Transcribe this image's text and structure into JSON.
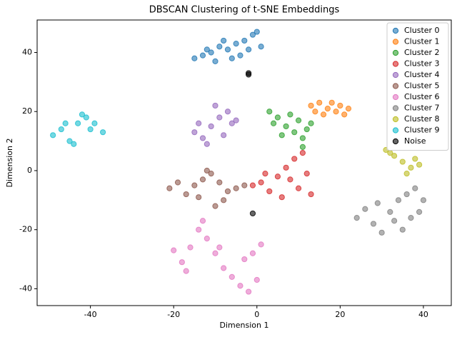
{
  "chart_data": {
    "type": "scatter",
    "title": "DBSCAN Clustering of t-SNE Embeddings",
    "x_label": "Dimension 1",
    "y_label": "Dimension 2",
    "xlim": [
      -52.8,
      46.7
    ],
    "ylim": [
      -45.7,
      51
    ],
    "xticks": [
      -40,
      -20,
      0,
      20,
      40
    ],
    "yticks": [
      -40,
      -20,
      0,
      20,
      40
    ],
    "legend": "upper right",
    "series": [
      {
        "name": "Cluster 0",
        "color": "#1f77b4",
        "x": [
          -15,
          -13,
          -11,
          -9,
          -7,
          -5,
          -3,
          -1,
          0,
          -2,
          -6,
          -10,
          -8,
          1,
          -4,
          -12
        ],
        "y": [
          38,
          39,
          40,
          42,
          41,
          43,
          44,
          46,
          47,
          41,
          38,
          37,
          44,
          42,
          39,
          41
        ]
      },
      {
        "name": "Cluster 1",
        "color": "#ff7f0e",
        "x": [
          13,
          15,
          17,
          19,
          21,
          16,
          18,
          20,
          14,
          22
        ],
        "y": [
          22,
          23,
          21,
          20,
          19,
          19,
          23,
          22,
          20,
          21
        ]
      },
      {
        "name": "Cluster 2",
        "color": "#2ca02c",
        "x": [
          3,
          5,
          7,
          9,
          11,
          12,
          6,
          8,
          10,
          13,
          4,
          11
        ],
        "y": [
          20,
          18,
          15,
          13,
          11,
          14,
          12,
          19,
          17,
          16,
          16,
          8
        ]
      },
      {
        "name": "Cluster 3",
        "color": "#d62728",
        "x": [
          1,
          3,
          5,
          7,
          9,
          11,
          12,
          10,
          6,
          8,
          2,
          13,
          -1
        ],
        "y": [
          -4,
          -7,
          -2,
          1,
          4,
          6,
          -1,
          -6,
          -9,
          -3,
          -1,
          -8,
          -5
        ]
      },
      {
        "name": "Cluster 4",
        "color": "#9467bd",
        "x": [
          -15,
          -13,
          -11,
          -9,
          -7,
          -6,
          -10,
          -12,
          -8,
          -14,
          -5
        ],
        "y": [
          13,
          11,
          15,
          18,
          20,
          16,
          22,
          9,
          12,
          16,
          17
        ]
      },
      {
        "name": "Cluster 5",
        "color": "#8c564b",
        "x": [
          -21,
          -19,
          -17,
          -15,
          -13,
          -11,
          -9,
          -7,
          -5,
          -3,
          -12,
          -14,
          -8,
          -10
        ],
        "y": [
          -6,
          -4,
          -8,
          -5,
          -3,
          -1,
          -4,
          -7,
          -6,
          -5,
          0,
          -9,
          -10,
          -12
        ]
      },
      {
        "name": "Cluster 6",
        "color": "#e377c2",
        "x": [
          -20,
          -18,
          -16,
          -14,
          -12,
          -10,
          -8,
          -6,
          -4,
          -2,
          0,
          -1,
          1,
          -3,
          -13,
          -17,
          -9
        ],
        "y": [
          -27,
          -31,
          -26,
          -20,
          -23,
          -28,
          -33,
          -36,
          -39,
          -41,
          -37,
          -28,
          -25,
          -30,
          -17,
          -34,
          -26
        ]
      },
      {
        "name": "Cluster 7",
        "color": "#7f7f7f",
        "x": [
          24,
          26,
          28,
          30,
          32,
          34,
          36,
          38,
          40,
          37,
          35,
          29,
          39,
          33
        ],
        "y": [
          -16,
          -13,
          -18,
          -21,
          -14,
          -10,
          -8,
          -6,
          -10,
          -16,
          -20,
          -11,
          -14,
          -17
        ]
      },
      {
        "name": "Cluster 8",
        "color": "#bcbd22",
        "x": [
          31,
          33,
          35,
          37,
          39,
          36,
          38,
          32
        ],
        "y": [
          7,
          5,
          3,
          1,
          2,
          -1,
          4,
          6
        ]
      },
      {
        "name": "Cluster 9",
        "color": "#17becf",
        "x": [
          -49,
          -47,
          -45,
          -43,
          -41,
          -39,
          -37,
          -44,
          -46,
          -40,
          -42
        ],
        "y": [
          12,
          14,
          10,
          16,
          18,
          16,
          13,
          9,
          16,
          14,
          19
        ]
      },
      {
        "name": "Noise",
        "color": "#000000",
        "x": [
          -2,
          -2,
          -1
        ],
        "y": [
          33,
          32.5,
          -14.5
        ]
      }
    ]
  }
}
